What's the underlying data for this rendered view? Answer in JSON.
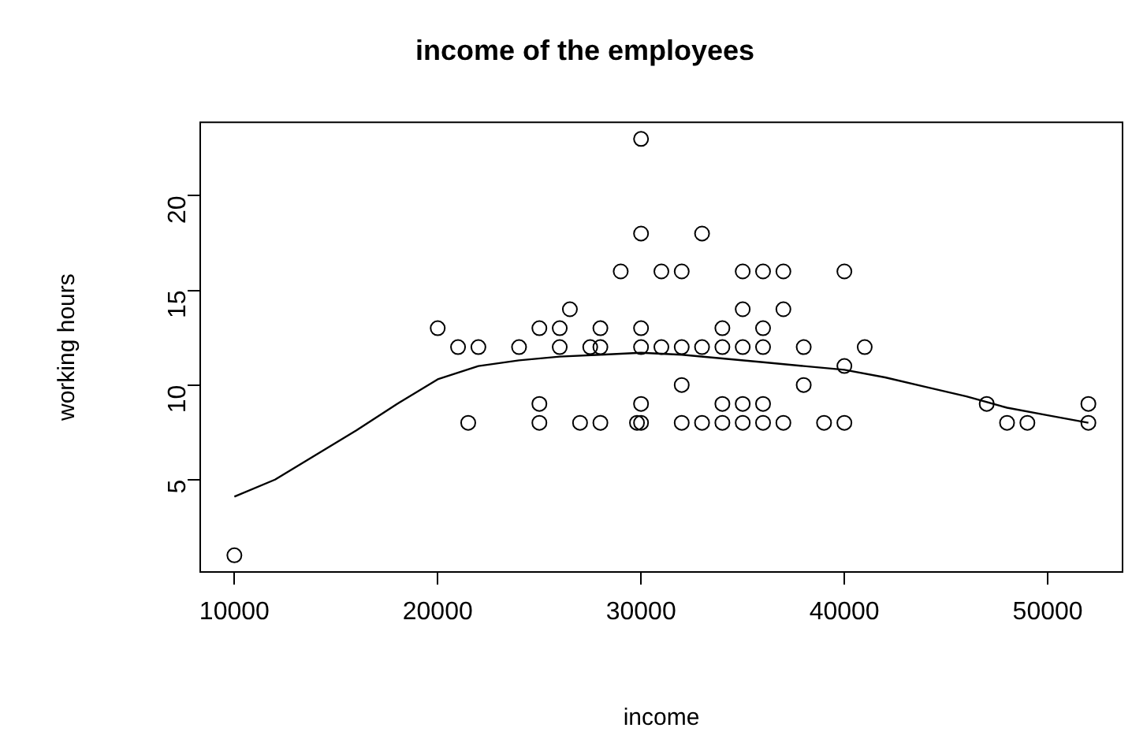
{
  "chart_data": {
    "type": "scatter",
    "title": "income of the employees",
    "xlabel": "income",
    "ylabel": "working hours",
    "xlim": [
      8320,
      53680
    ],
    "xticks": [
      10000,
      20000,
      30000,
      40000,
      50000
    ],
    "ylim": [
      0.12,
      23.88
    ],
    "yticks": [
      5,
      10,
      15,
      20
    ],
    "grid": false,
    "legend": false,
    "series": [
      {
        "marker": "circle",
        "color": "#000000",
        "x": [
          10000,
          20000,
          21000,
          21500,
          22000,
          24000,
          25000,
          25000,
          25000,
          26000,
          26000,
          26500,
          27000,
          27500,
          28000,
          28000,
          28000,
          29000,
          30000,
          30000,
          30000,
          30000,
          30000,
          30000,
          29800,
          31000,
          31000,
          32000,
          32000,
          32000,
          32000,
          33000,
          33000,
          33000,
          34000,
          34000,
          34000,
          34000,
          35000,
          35000,
          35000,
          35000,
          35000,
          36000,
          36000,
          36000,
          36000,
          36000,
          37000,
          37000,
          37000,
          38000,
          38000,
          39000,
          40000,
          40000,
          40000,
          41000,
          47000,
          48000,
          49000,
          52000,
          52000
        ],
        "values": [
          1,
          13,
          12,
          8,
          12,
          12,
          13,
          9,
          8,
          13,
          12,
          14,
          8,
          12,
          13,
          12,
          8,
          16,
          23,
          18,
          13,
          12,
          9,
          8,
          8,
          16,
          12,
          16,
          12,
          10,
          8,
          18,
          12,
          8,
          13,
          12,
          9,
          8,
          16,
          14,
          12,
          9,
          8,
          16,
          13,
          12,
          9,
          8,
          16,
          14,
          8,
          12,
          10,
          8,
          16,
          11,
          8,
          12,
          9,
          8,
          8,
          9,
          8
        ]
      },
      {
        "type": "line",
        "marker": "none",
        "line_style": "solid",
        "color": "#000000",
        "x": [
          10000,
          12000,
          14000,
          16000,
          18000,
          20000,
          22000,
          24000,
          26000,
          28000,
          30000,
          32000,
          34000,
          36000,
          38000,
          40000,
          42000,
          44000,
          46000,
          48000,
          50000,
          52000
        ],
        "values": [
          4.1,
          5,
          6.3,
          7.6,
          9,
          10.3,
          11,
          11.3,
          11.5,
          11.6,
          11.7,
          11.6,
          11.4,
          11.2,
          11,
          10.8,
          10.4,
          9.9,
          9.4,
          8.8,
          8.4,
          8
        ]
      }
    ]
  }
}
